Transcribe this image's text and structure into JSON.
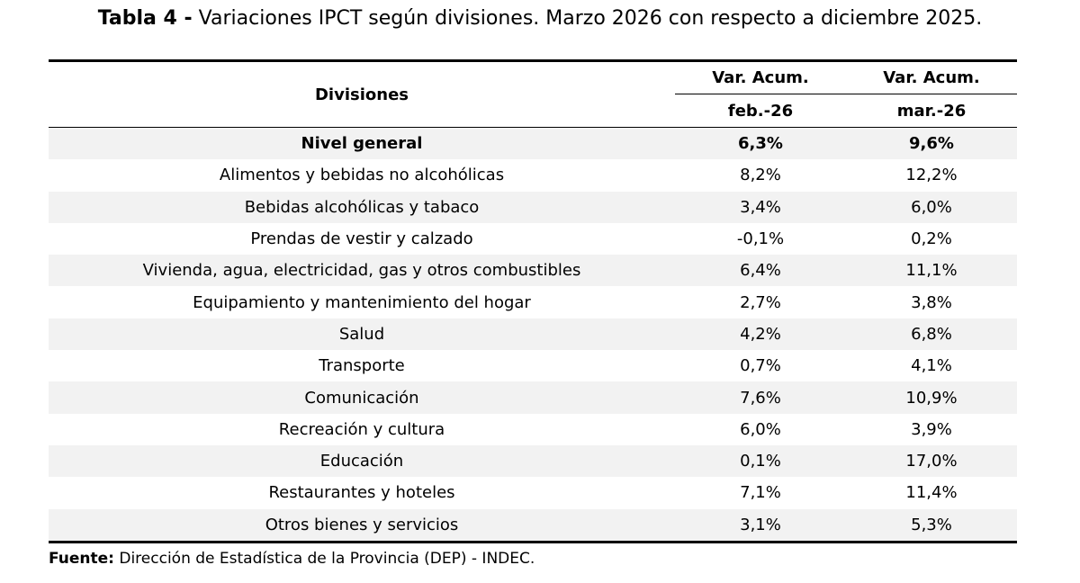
{
  "title": {
    "lead": "Tabla 4 -",
    "text": " Variaciones IPCT según divisiones. Marzo 2026 con respecto a diciembre 2025."
  },
  "table": {
    "header": {
      "divisions": "Divisiones",
      "col1_top": "Var. Acum.",
      "col1_sub": "feb.-26",
      "col2_top": "Var. Acum.",
      "col2_sub": "mar.-26"
    },
    "rows": [
      {
        "division": "Nivel general",
        "feb": "6,3%",
        "mar": "9,6%"
      },
      {
        "division": "Alimentos y bebidas no alcohólicas",
        "feb": "8,2%",
        "mar": "12,2%"
      },
      {
        "division": "Bebidas alcohólicas y tabaco",
        "feb": "3,4%",
        "mar": "6,0%"
      },
      {
        "division": "Prendas de vestir y calzado",
        "feb": "-0,1%",
        "mar": "0,2%"
      },
      {
        "division": "Vivienda, agua, electricidad, gas y otros combustibles",
        "feb": "6,4%",
        "mar": "11,1%"
      },
      {
        "division": "Equipamiento y mantenimiento del hogar",
        "feb": "2,7%",
        "mar": "3,8%"
      },
      {
        "division": "Salud",
        "feb": "4,2%",
        "mar": "6,8%"
      },
      {
        "division": "Transporte",
        "feb": "0,7%",
        "mar": "4,1%"
      },
      {
        "division": "Comunicación",
        "feb": "7,6%",
        "mar": "10,9%"
      },
      {
        "division": "Recreación y cultura",
        "feb": "6,0%",
        "mar": "3,9%"
      },
      {
        "division": "Educación",
        "feb": "0,1%",
        "mar": "17,0%"
      },
      {
        "division": "Restaurantes y hoteles",
        "feb": "7,1%",
        "mar": "11,4%"
      },
      {
        "division": "Otros bienes y servicios",
        "feb": "3,1%",
        "mar": "5,3%"
      }
    ]
  },
  "source": {
    "lead": "Fuente:",
    "text": " Dirección de Estadística de la Provincia (DEP) - INDEC."
  },
  "colors": {
    "shaded_row": "#f2f2f2",
    "rule": "#000000"
  }
}
